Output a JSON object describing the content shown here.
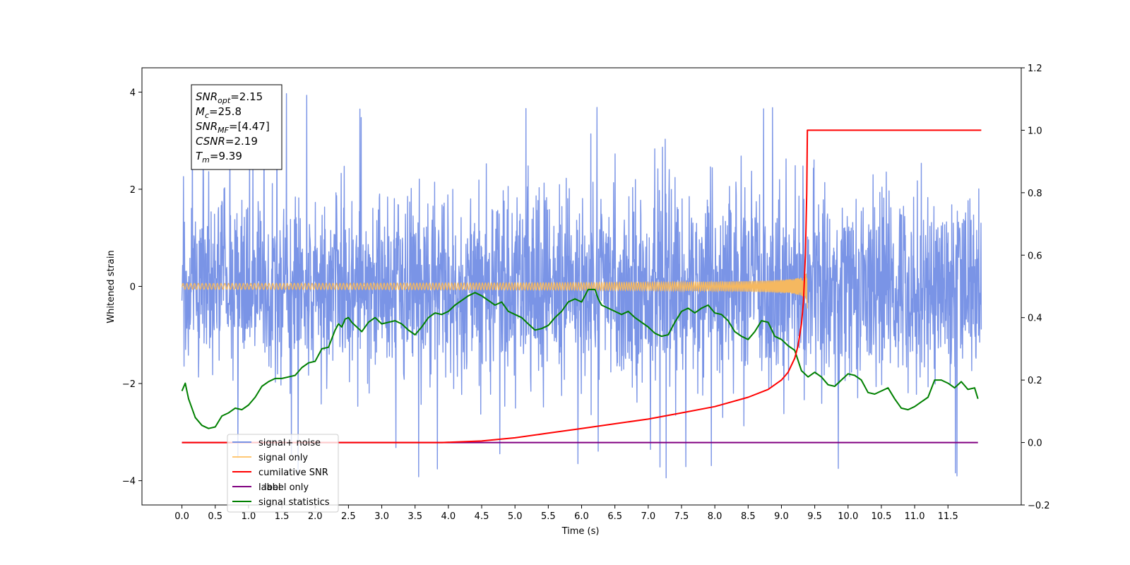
{
  "chart_data": {
    "type": "line",
    "xlabel": "Time (s)",
    "ylabel_left": "Whitened strain",
    "ylabel_right": "",
    "xlim": [
      -0.6,
      12.6
    ],
    "ylim_left": [
      -4.5,
      4.5
    ],
    "ylim_right": [
      -0.2,
      1.2
    ],
    "x_ticks": [
      "0.0",
      "0.5",
      "1.0",
      "1.5",
      "2.0",
      "2.5",
      "3.0",
      "3.5",
      "4.0",
      "4.5",
      "5.0",
      "5.5",
      "6.0",
      "6.5",
      "7.0",
      "7.5",
      "8.0",
      "8.5",
      "9.0",
      "9.5",
      "10.0",
      "10.5",
      "11.0",
      "11.5"
    ],
    "y_ticks_left": [
      "4",
      "2",
      "0",
      "−2",
      "−4"
    ],
    "y_ticks_right": [
      "1.2",
      "1.0",
      "0.8",
      "0.6",
      "0.4",
      "0.2",
      "0.0",
      "−0.2"
    ],
    "grid": false,
    "legend_placement": "lower-left",
    "annotation_box": [
      {
        "name": "SNR",
        "sub": "opt",
        "value": "=2.15"
      },
      {
        "name": "M",
        "sub": "c",
        "value": "=25.8"
      },
      {
        "name": "SNR",
        "sub": "MF",
        "value": "=[4.47]"
      },
      {
        "name": "CSNR",
        "sub": "",
        "value": "=2.19"
      },
      {
        "name": "T",
        "sub": "m",
        "value": "=9.39"
      }
    ],
    "series": [
      {
        "name": "signal+ noise",
        "axis": "left",
        "color": "#7a94e6",
        "kind": "noise",
        "x_range": [
          0.0,
          12.0
        ],
        "description_values": {
          "mean": 0.0,
          "typical_min": -2.8,
          "typical_max": 2.9,
          "extreme_max": 4.1,
          "extreme_min": -4.1
        }
      },
      {
        "name": "signal only",
        "axis": "left",
        "color": "#f5b860",
        "kind": "chirp",
        "x_range": [
          0.0,
          9.39
        ],
        "peak_amplitude": 0.5,
        "merger_time": 9.39
      },
      {
        "name": "cumilative SNR",
        "axis": "right",
        "color": "#ff0000",
        "x": [
          0.0,
          3.9,
          4.5,
          5.0,
          5.5,
          6.0,
          6.5,
          7.0,
          7.5,
          8.0,
          8.5,
          8.8,
          9.0,
          9.1,
          9.2,
          9.25,
          9.3,
          9.33,
          9.36,
          9.38,
          9.39,
          9.4,
          12.0
        ],
        "y": [
          0.0,
          0.0,
          0.005,
          0.015,
          0.03,
          0.045,
          0.06,
          0.075,
          0.095,
          0.115,
          0.145,
          0.17,
          0.2,
          0.225,
          0.27,
          0.31,
          0.38,
          0.45,
          0.6,
          0.8,
          1.0,
          1.0,
          1.0
        ]
      },
      {
        "name": "label",
        "axis": "right",
        "color": "#800080",
        "x": [
          0.0,
          11.95
        ],
        "y": [
          0.0,
          0.0
        ]
      },
      {
        "name": "label only",
        "axis": "right",
        "color": "#800080",
        "hidden_in_plot": true
      },
      {
        "name": "signal statistics",
        "axis": "right",
        "color": "#008000",
        "x": [
          0.0,
          0.05,
          0.1,
          0.2,
          0.3,
          0.4,
          0.5,
          0.6,
          0.7,
          0.8,
          0.9,
          1.0,
          1.1,
          1.2,
          1.3,
          1.4,
          1.5,
          1.6,
          1.7,
          1.8,
          1.9,
          2.0,
          2.1,
          2.2,
          2.3,
          2.35,
          2.4,
          2.45,
          2.5,
          2.55,
          2.6,
          2.7,
          2.8,
          2.9,
          3.0,
          3.1,
          3.2,
          3.3,
          3.4,
          3.5,
          3.6,
          3.7,
          3.8,
          3.9,
          4.0,
          4.1,
          4.2,
          4.3,
          4.4,
          4.5,
          4.6,
          4.7,
          4.8,
          4.9,
          5.0,
          5.1,
          5.2,
          5.3,
          5.4,
          5.5,
          5.6,
          5.7,
          5.8,
          5.9,
          6.0,
          6.1,
          6.2,
          6.25,
          6.3,
          6.4,
          6.5,
          6.6,
          6.7,
          6.8,
          6.9,
          7.0,
          7.1,
          7.2,
          7.3,
          7.4,
          7.5,
          7.6,
          7.7,
          7.8,
          7.9,
          8.0,
          8.1,
          8.2,
          8.3,
          8.4,
          8.5,
          8.6,
          8.7,
          8.8,
          8.9,
          9.0,
          9.1,
          9.2,
          9.3,
          9.4,
          9.5,
          9.6,
          9.7,
          9.8,
          9.9,
          10.0,
          10.1,
          10.2,
          10.3,
          10.4,
          10.5,
          10.6,
          10.7,
          10.8,
          10.9,
          11.0,
          11.1,
          11.2,
          11.3,
          11.4,
          11.5,
          11.6,
          11.7,
          11.8,
          11.9,
          11.95
        ],
        "y": [
          0.165,
          0.19,
          0.14,
          0.08,
          0.055,
          0.045,
          0.05,
          0.085,
          0.095,
          0.11,
          0.105,
          0.12,
          0.145,
          0.18,
          0.195,
          0.205,
          0.205,
          0.21,
          0.215,
          0.24,
          0.255,
          0.26,
          0.3,
          0.305,
          0.36,
          0.38,
          0.37,
          0.395,
          0.4,
          0.385,
          0.375,
          0.355,
          0.385,
          0.4,
          0.38,
          0.385,
          0.39,
          0.38,
          0.36,
          0.345,
          0.37,
          0.4,
          0.415,
          0.41,
          0.42,
          0.44,
          0.455,
          0.47,
          0.48,
          0.47,
          0.455,
          0.44,
          0.45,
          0.42,
          0.41,
          0.4,
          0.38,
          0.36,
          0.365,
          0.375,
          0.4,
          0.42,
          0.45,
          0.46,
          0.45,
          0.49,
          0.49,
          0.46,
          0.44,
          0.43,
          0.42,
          0.41,
          0.42,
          0.4,
          0.385,
          0.37,
          0.35,
          0.34,
          0.345,
          0.385,
          0.42,
          0.43,
          0.415,
          0.43,
          0.44,
          0.415,
          0.41,
          0.39,
          0.355,
          0.34,
          0.33,
          0.355,
          0.39,
          0.385,
          0.34,
          0.33,
          0.31,
          0.295,
          0.23,
          0.21,
          0.225,
          0.21,
          0.185,
          0.18,
          0.2,
          0.22,
          0.215,
          0.2,
          0.16,
          0.155,
          0.165,
          0.175,
          0.14,
          0.11,
          0.105,
          0.115,
          0.13,
          0.145,
          0.2,
          0.2,
          0.19,
          0.175,
          0.195,
          0.17,
          0.175,
          0.14
        ]
      }
    ]
  }
}
